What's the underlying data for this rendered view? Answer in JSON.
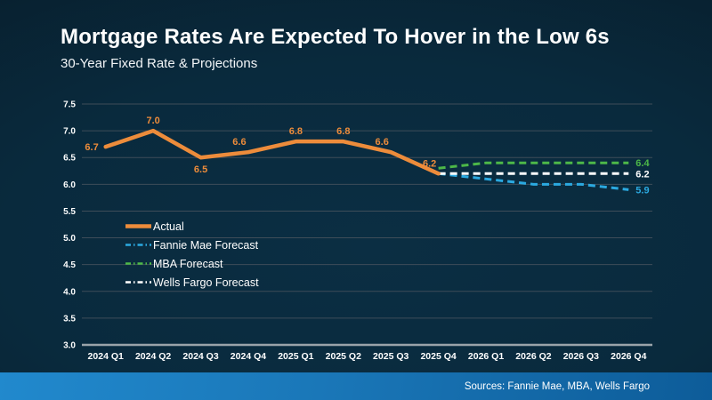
{
  "header": {
    "title": "Mortgage Rates Are Expected To Hover in the Low 6s",
    "subtitle": "30-Year Fixed Rate & Projections"
  },
  "footer": {
    "sources": "Sources: Fannie Mae, MBA, Wells Fargo"
  },
  "colors": {
    "background_dark": "#071623",
    "background_mid": "#092a3d",
    "accent_orange": "#ED8C3B",
    "forecast_blue": "#2BA9E0",
    "forecast_green": "#4DB848",
    "forecast_white": "#FFFFFF",
    "gridline": "#3E4D59",
    "axis_line": "#9AA3AA",
    "footer_bar_left": "#2189CD",
    "footer_bar_right": "#0D5C99",
    "text": "#FFFFFF"
  },
  "legend": {
    "items": [
      {
        "label": "Actual",
        "color": "#ED8C3B",
        "style": "solid"
      },
      {
        "label": "Fannie Mae Forecast",
        "color": "#2BA9E0",
        "style": "dashed"
      },
      {
        "label": "MBA Forecast",
        "color": "#4DB848",
        "style": "dashed"
      },
      {
        "label": "Wells Fargo Forecast",
        "color": "#FFFFFF",
        "style": "dashed"
      }
    ]
  },
  "chart_data": {
    "type": "line",
    "title": "30-Year Fixed Rate & Projections",
    "categories": [
      "2024 Q1",
      "2024 Q2",
      "2024 Q3",
      "2024 Q4",
      "2025 Q1",
      "2025 Q2",
      "2025 Q3",
      "2025 Q4",
      "2026 Q1",
      "2026 Q2",
      "2026 Q3",
      "2026 Q4"
    ],
    "ylim": [
      3.0,
      7.5
    ],
    "ytick_step": 0.5,
    "grid": true,
    "legend_position": "inside-left",
    "series": [
      {
        "name": "Actual",
        "color": "#ED8C3B",
        "style": "solid",
        "values": [
          6.7,
          7.0,
          6.5,
          6.6,
          6.8,
          6.8,
          6.6,
          6.2,
          null,
          null,
          null,
          null
        ]
      },
      {
        "name": "Fannie Mae Forecast",
        "color": "#2BA9E0",
        "style": "dashed",
        "values": [
          null,
          null,
          null,
          null,
          null,
          null,
          null,
          6.2,
          6.1,
          6.0,
          6.0,
          5.9
        ]
      },
      {
        "name": "MBA Forecast",
        "color": "#4DB848",
        "style": "dashed",
        "values": [
          null,
          null,
          null,
          null,
          null,
          null,
          null,
          6.3,
          6.4,
          6.4,
          6.4,
          6.4
        ]
      },
      {
        "name": "Wells Fargo Forecast",
        "color": "#FFFFFF",
        "style": "dashed",
        "values": [
          null,
          null,
          null,
          null,
          null,
          null,
          null,
          6.2,
          6.2,
          6.2,
          6.2,
          6.2
        ]
      }
    ],
    "point_labels": [
      {
        "text": "6.7",
        "index": 0,
        "placement": "left"
      },
      {
        "text": "7.0",
        "index": 1,
        "placement": "above"
      },
      {
        "text": "6.5",
        "index": 2,
        "placement": "below"
      },
      {
        "text": "6.6",
        "index": 3,
        "placement": "above-left"
      },
      {
        "text": "6.8",
        "index": 4,
        "placement": "above"
      },
      {
        "text": "6.8",
        "index": 5,
        "placement": "above"
      },
      {
        "text": "6.6",
        "index": 6,
        "placement": "above-left"
      },
      {
        "text": "6.2",
        "index": 7,
        "placement": "above-left"
      }
    ],
    "end_labels": [
      {
        "text": "6.4",
        "value": 6.4,
        "color": "#4DB848"
      },
      {
        "text": "6.2",
        "value": 6.2,
        "color": "#FFFFFF"
      },
      {
        "text": "5.9",
        "value": 5.9,
        "color": "#2BA9E0"
      }
    ]
  }
}
